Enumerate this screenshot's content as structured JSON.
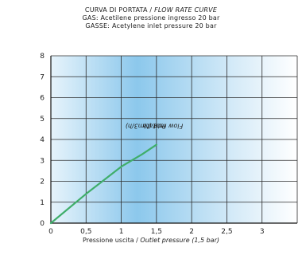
{
  "chart_data": {
    "type": "line",
    "title": "CURVA DI PORTATA / FLOW RATE CURVE",
    "title_it": "CURVA DI PORTATA",
    "title_en": "FLOW RATE CURVE",
    "subtitle1_it": "GAS: Acetilene  pressione ingresso 20 bar",
    "subtitle2_en": "GASSE: Acetylene inlet pressure 20 bar",
    "xlabel_it": "Pressione uscita",
    "xlabel_en": "Outlet pressure (1,5 bar)",
    "ylabel_it": "Portata",
    "ylabel_en": "Flow rate (Nm3/h)",
    "xlim": [
      0,
      3.5
    ],
    "ylim": [
      0,
      8
    ],
    "xticks": [
      "0",
      "0,5",
      "1",
      "1,5",
      "2",
      "2,5",
      "3"
    ],
    "yticks": [
      "0",
      "1",
      "2",
      "3",
      "4",
      "5",
      "6",
      "7",
      "8"
    ],
    "grid": true,
    "series": [
      {
        "color": "#3fae6a",
        "x": [
          0,
          0.5,
          1.0,
          1.3,
          1.5
        ],
        "y": [
          0,
          1.4,
          2.7,
          3.3,
          3.75
        ]
      }
    ]
  }
}
